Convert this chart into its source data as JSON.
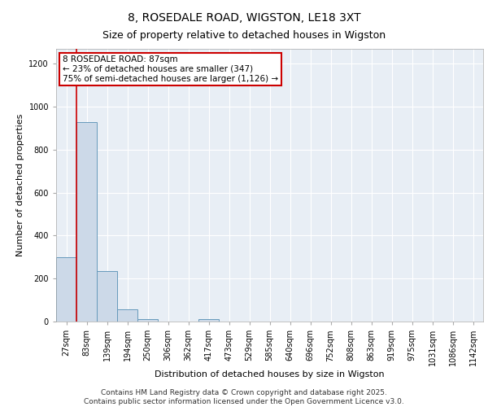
{
  "title": "8, ROSEDALE ROAD, WIGSTON, LE18 3XT",
  "subtitle": "Size of property relative to detached houses in Wigston",
  "xlabel": "Distribution of detached houses by size in Wigston",
  "ylabel": "Number of detached properties",
  "bin_labels": [
    "27sqm",
    "83sqm",
    "139sqm",
    "194sqm",
    "250sqm",
    "306sqm",
    "362sqm",
    "417sqm",
    "473sqm",
    "529sqm",
    "585sqm",
    "640sqm",
    "696sqm",
    "752sqm",
    "808sqm",
    "863sqm",
    "919sqm",
    "975sqm",
    "1031sqm",
    "1086sqm",
    "1142sqm"
  ],
  "bar_values": [
    300,
    930,
    235,
    55,
    12,
    0,
    0,
    12,
    0,
    0,
    0,
    0,
    0,
    0,
    0,
    0,
    0,
    0,
    0,
    0,
    0
  ],
  "bar_color": "#ccd9e8",
  "bar_edge_color": "#6699bb",
  "property_line_color": "#cc0000",
  "ylim": [
    0,
    1270
  ],
  "yticks": [
    0,
    200,
    400,
    600,
    800,
    1000,
    1200
  ],
  "annotation_text": "8 ROSEDALE ROAD: 87sqm\n← 23% of detached houses are smaller (347)\n75% of semi-detached houses are larger (1,126) →",
  "annotation_box_color": "#cc0000",
  "footer_line1": "Contains HM Land Registry data © Crown copyright and database right 2025.",
  "footer_line2": "Contains public sector information licensed under the Open Government Licence v3.0.",
  "background_color": "#e8eef5",
  "grid_color": "#ffffff",
  "title_fontsize": 10,
  "subtitle_fontsize": 9,
  "tick_fontsize": 7,
  "ylabel_fontsize": 8,
  "xlabel_fontsize": 8,
  "annotation_fontsize": 7.5,
  "footer_fontsize": 6.5
}
